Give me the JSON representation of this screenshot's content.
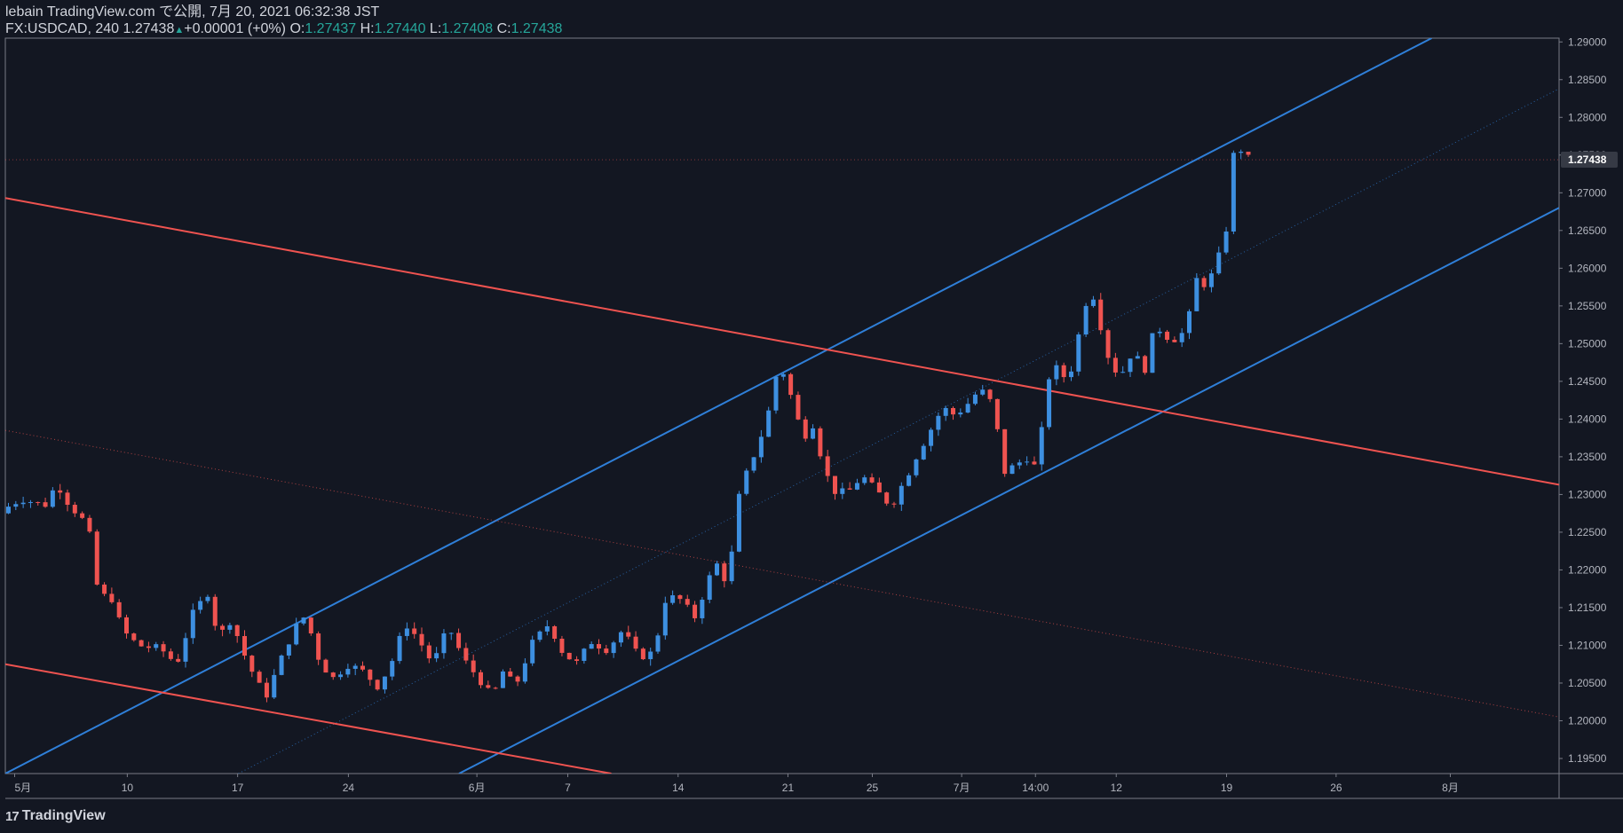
{
  "header": {
    "publisher_line": "lebain TradingView.com で公開, 7月 20, 2021 06:32:38 JST",
    "symbol": "FX:USDCAD",
    "interval": "240",
    "last": "1.27438",
    "change": "+0.00001 (+0%)",
    "o_label": "O:",
    "o": "1.27437",
    "h_label": "H:",
    "h": "1.27440",
    "l_label": "L:",
    "l": "1.27408",
    "c_label": "C:",
    "c": "1.27438"
  },
  "footer": {
    "brand": "TradingView",
    "logo_glyph": "17"
  },
  "colors": {
    "background": "#131722",
    "up": "#3d8fe0",
    "down": "#ef5350",
    "blue_line": "#2f7fd8",
    "red_line": "#ef5350",
    "axis_text": "#b2b5be",
    "axis_line": "#787b86",
    "price_badge": "#363a45"
  },
  "chart_data": {
    "type": "candlestick",
    "symbol": "FX:USDCAD",
    "interval": "240",
    "y_axis": {
      "ylim": [
        1.193,
        1.2905
      ],
      "tick_labels": [
        "1.29000",
        "1.28500",
        "1.28000",
        "1.27500",
        "1.27000",
        "1.26500",
        "1.26000",
        "1.25500",
        "1.25000",
        "1.24500",
        "1.24000",
        "1.23500",
        "1.23000",
        "1.22500",
        "1.22000",
        "1.21500",
        "1.21000",
        "1.20500",
        "1.20000",
        "1.19500"
      ],
      "current_price_label": "1.27438",
      "current_price": 1.27438
    },
    "x_axis": {
      "ticks": [
        {
          "label": "5月",
          "pos": 0.006
        },
        {
          "label": "10",
          "pos": 0.0785
        },
        {
          "label": "17",
          "pos": 0.1495
        },
        {
          "label": "24",
          "pos": 0.2208
        },
        {
          "label": "6月",
          "pos": 0.3035
        },
        {
          "label": "7",
          "pos": 0.362
        },
        {
          "label": "14",
          "pos": 0.433
        },
        {
          "label": "21",
          "pos": 0.5037
        },
        {
          "label": "25",
          "pos": 0.558
        },
        {
          "label": "7月",
          "pos": 0.6155
        },
        {
          "label": "14:00",
          "pos": 0.663
        },
        {
          "label": "12",
          "pos": 0.715
        },
        {
          "label": "19",
          "pos": 0.786
        },
        {
          "label": "26",
          "pos": 0.8565
        },
        {
          "label": "8月",
          "pos": 0.93
        }
      ]
    },
    "path_points": [
      [
        0.0,
        1.2275
      ],
      [
        0.015,
        1.2295
      ],
      [
        0.03,
        1.2285
      ],
      [
        0.038,
        1.2315
      ],
      [
        0.045,
        1.229
      ],
      [
        0.055,
        1.2265
      ],
      [
        0.06,
        1.224
      ],
      [
        0.065,
        1.216
      ],
      [
        0.072,
        1.217
      ],
      [
        0.08,
        1.212
      ],
      [
        0.09,
        1.21
      ],
      [
        0.105,
        1.2095
      ],
      [
        0.115,
        1.2075
      ],
      [
        0.125,
        1.214
      ],
      [
        0.135,
        1.217
      ],
      [
        0.142,
        1.211
      ],
      [
        0.15,
        1.2135
      ],
      [
        0.16,
        1.208
      ],
      [
        0.172,
        1.203
      ],
      [
        0.18,
        1.207
      ],
      [
        0.19,
        1.212
      ],
      [
        0.198,
        1.214
      ],
      [
        0.206,
        1.2085
      ],
      [
        0.215,
        1.2055
      ],
      [
        0.225,
        1.2075
      ],
      [
        0.235,
        1.2065
      ],
      [
        0.245,
        1.2045
      ],
      [
        0.255,
        1.2085
      ],
      [
        0.262,
        1.213
      ],
      [
        0.27,
        1.211
      ],
      [
        0.28,
        1.2075
      ],
      [
        0.29,
        1.2125
      ],
      [
        0.3,
        1.208
      ],
      [
        0.31,
        1.2055
      ],
      [
        0.318,
        1.203
      ],
      [
        0.325,
        1.2065
      ],
      [
        0.333,
        1.2045
      ],
      [
        0.343,
        1.21
      ],
      [
        0.355,
        1.213
      ],
      [
        0.362,
        1.2095
      ],
      [
        0.372,
        1.2075
      ],
      [
        0.382,
        1.2105
      ],
      [
        0.392,
        1.2095
      ],
      [
        0.402,
        1.212
      ],
      [
        0.412,
        1.2085
      ],
      [
        0.422,
        1.209
      ],
      [
        0.43,
        1.2165
      ],
      [
        0.44,
        1.216
      ],
      [
        0.448,
        1.2135
      ],
      [
        0.455,
        1.2175
      ],
      [
        0.462,
        1.221
      ],
      [
        0.47,
        1.218
      ],
      [
        0.476,
        1.229
      ],
      [
        0.483,
        1.2335
      ],
      [
        0.49,
        1.237
      ],
      [
        0.496,
        1.241
      ],
      [
        0.5,
        1.2455
      ],
      [
        0.505,
        1.2465
      ],
      [
        0.512,
        1.242
      ],
      [
        0.518,
        1.2375
      ],
      [
        0.525,
        1.2395
      ],
      [
        0.532,
        1.233
      ],
      [
        0.54,
        1.23
      ],
      [
        0.548,
        1.2305
      ],
      [
        0.556,
        1.2325
      ],
      [
        0.565,
        1.2305
      ],
      [
        0.575,
        1.2285
      ],
      [
        0.585,
        1.2325
      ],
      [
        0.592,
        1.2355
      ],
      [
        0.6,
        1.2385
      ],
      [
        0.608,
        1.2415
      ],
      [
        0.616,
        1.2405
      ],
      [
        0.624,
        1.242
      ],
      [
        0.632,
        1.244
      ],
      [
        0.64,
        1.242
      ],
      [
        0.648,
        1.233
      ],
      [
        0.656,
        1.234
      ],
      [
        0.662,
        1.235
      ],
      [
        0.668,
        1.2335
      ],
      [
        0.673,
        1.24
      ],
      [
        0.678,
        1.248
      ],
      [
        0.684,
        1.2455
      ],
      [
        0.69,
        1.246
      ],
      [
        0.697,
        1.2525
      ],
      [
        0.703,
        1.258
      ],
      [
        0.709,
        1.253
      ],
      [
        0.715,
        1.248
      ],
      [
        0.722,
        1.2455
      ],
      [
        0.73,
        1.249
      ],
      [
        0.738,
        1.2465
      ],
      [
        0.745,
        1.2525
      ],
      [
        0.752,
        1.251
      ],
      [
        0.76,
        1.2505
      ],
      [
        0.766,
        1.253
      ],
      [
        0.772,
        1.259
      ],
      [
        0.778,
        1.2575
      ],
      [
        0.784,
        1.2605
      ],
      [
        0.79,
        1.264
      ],
      [
        0.794,
        1.274
      ],
      [
        0.798,
        1.277
      ],
      [
        0.802,
        1.2745
      ]
    ],
    "trendlines": [
      {
        "color": "blue",
        "style": "solid",
        "from": [
          0.0,
          1.193
        ],
        "to": [
          0.918,
          1.2905
        ]
      },
      {
        "color": "blue",
        "style": "solid",
        "from": [
          0.292,
          1.193
        ],
        "to": [
          1.0,
          1.268
        ]
      },
      {
        "color": "blue",
        "style": "dotted",
        "from": [
          0.15,
          1.193
        ],
        "to": [
          1.0,
          1.2838
        ]
      },
      {
        "color": "red",
        "style": "solid",
        "from": [
          0.0,
          1.2693
        ],
        "to": [
          1.0,
          1.2313
        ]
      },
      {
        "color": "red",
        "style": "solid",
        "from": [
          0.0,
          1.2075
        ],
        "to": [
          0.39,
          1.193
        ]
      },
      {
        "color": "red",
        "style": "dotted",
        "from": [
          0.0,
          1.2385
        ],
        "to": [
          1.0,
          1.2005
        ]
      }
    ],
    "current_price_line": {
      "price": 1.27438,
      "style": "dotted"
    }
  }
}
